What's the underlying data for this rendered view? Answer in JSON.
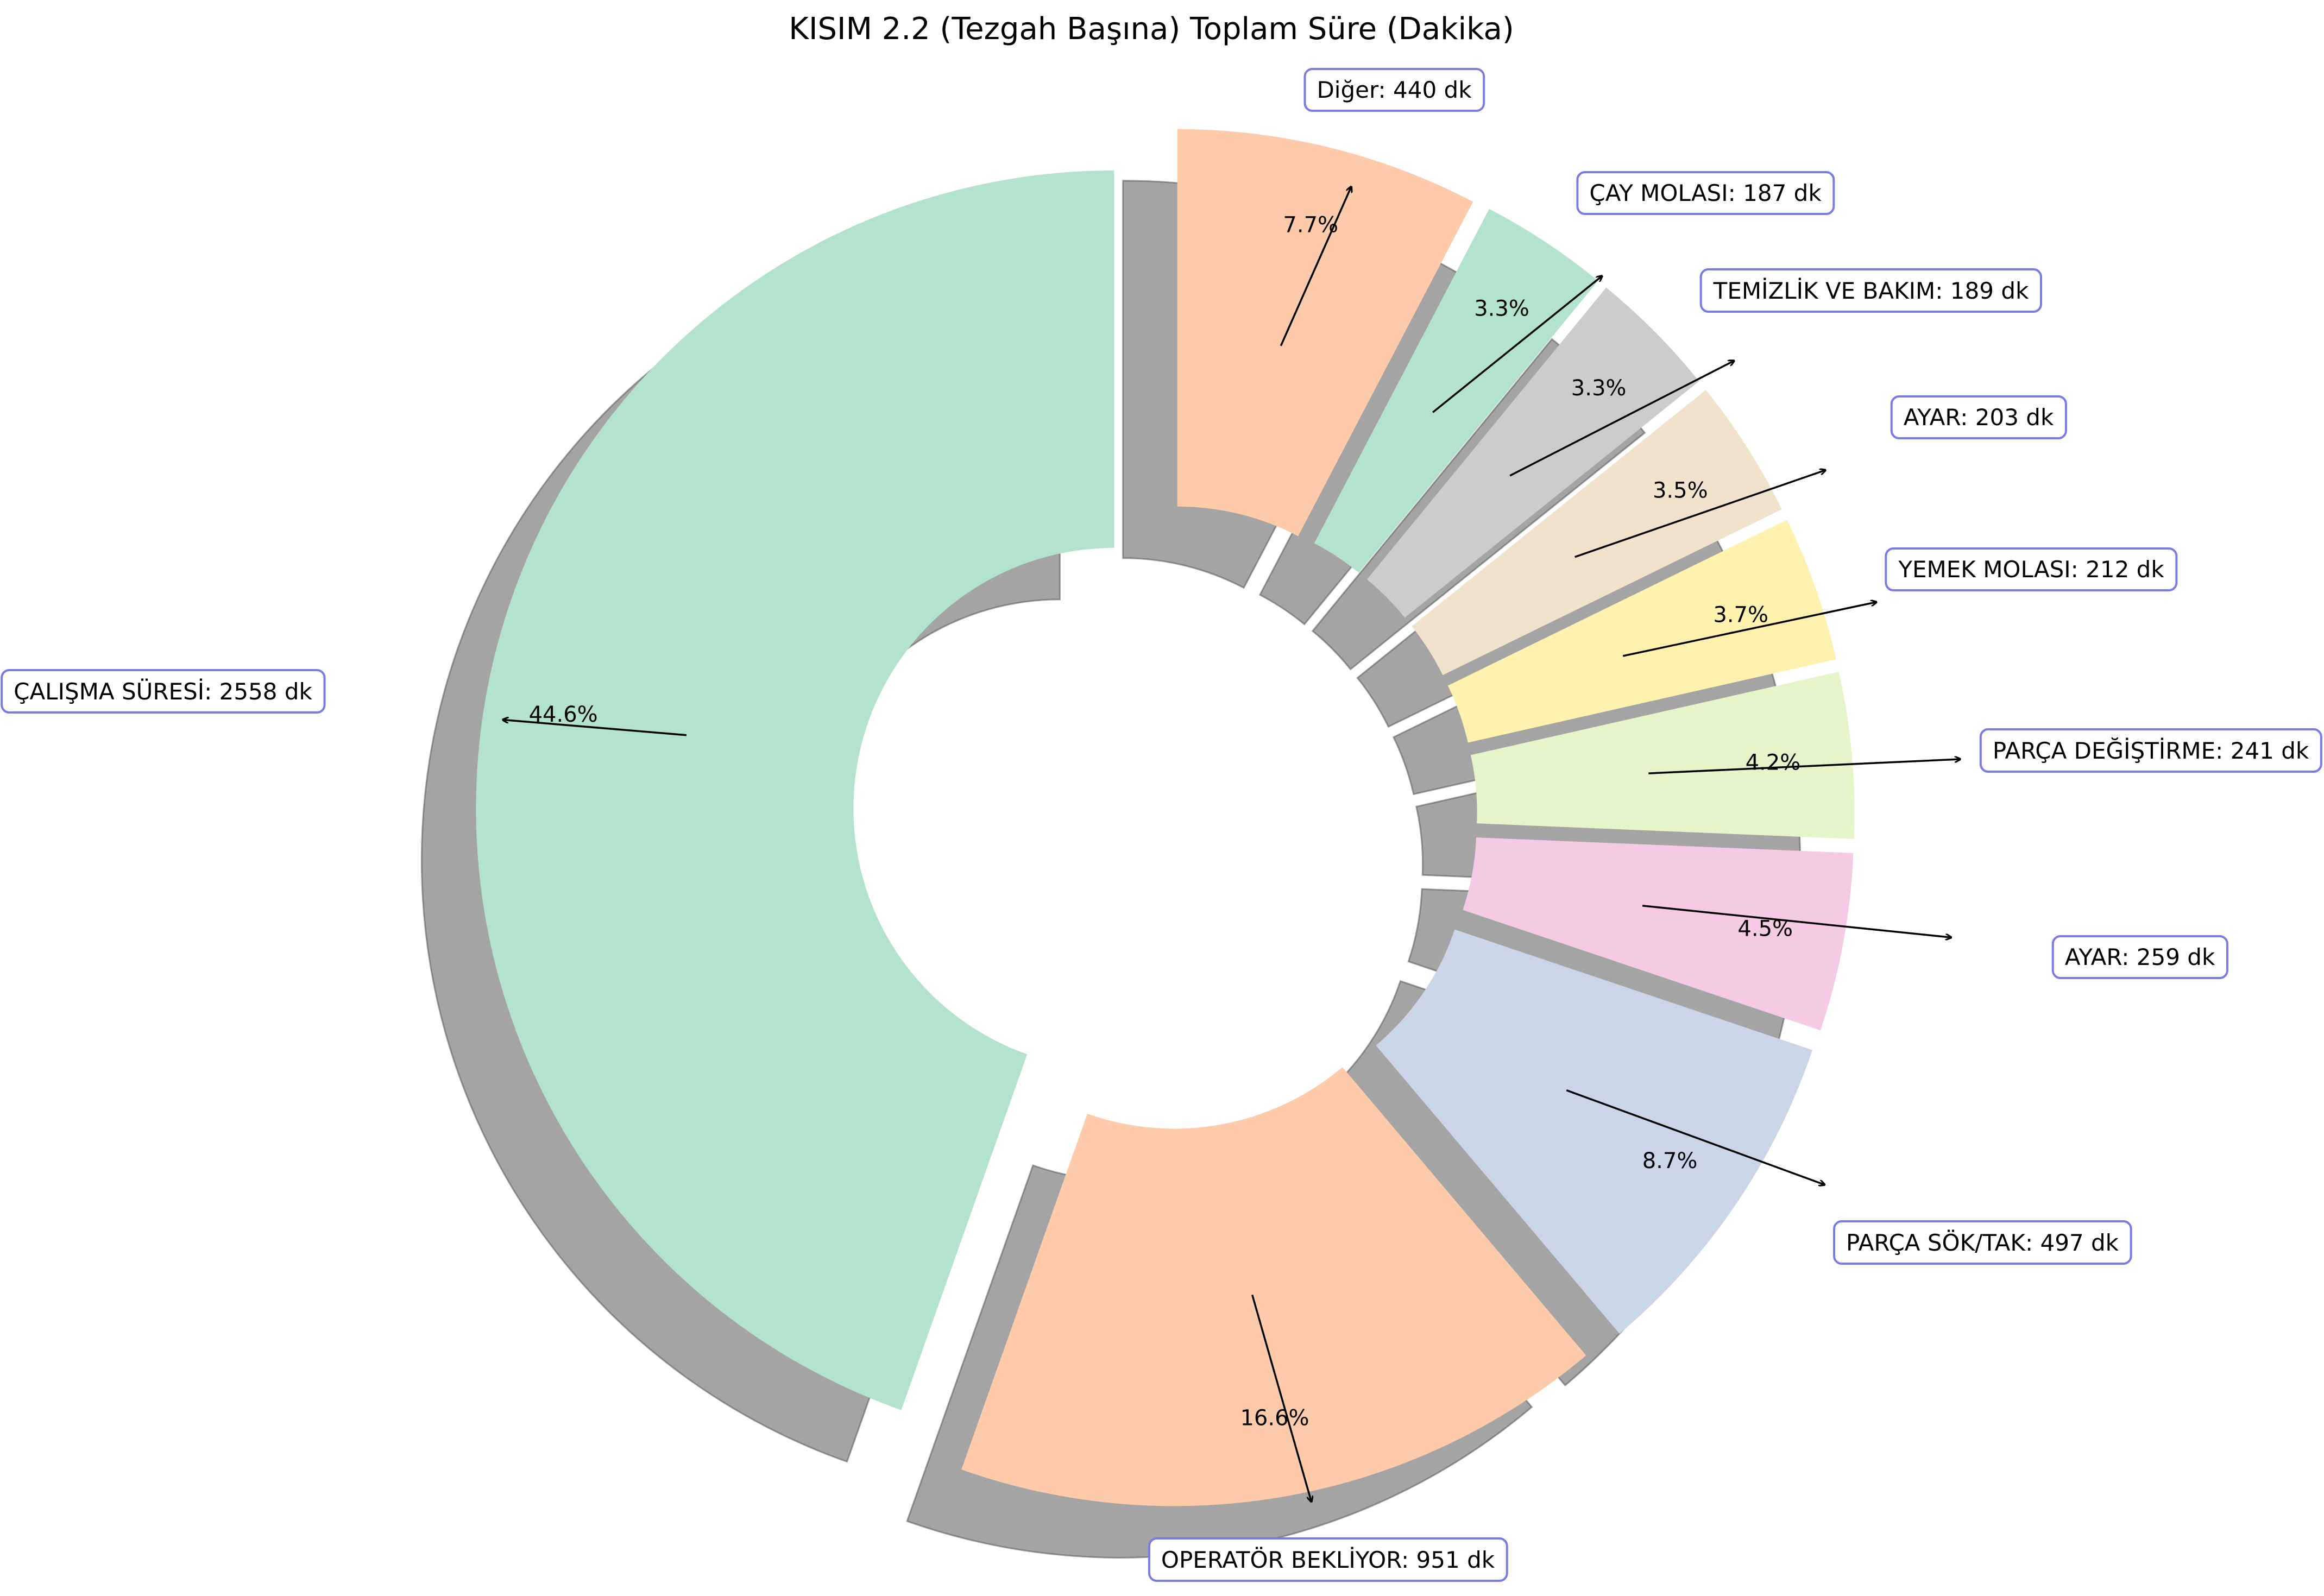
{
  "chart_data": {
    "type": "pie",
    "style": "donut",
    "title": "KISIM 2.2 (Tezgah Başına) Toplam Süre (Dakika)",
    "unit_suffix": "dk",
    "start_angle_deg": 90,
    "direction": "clockwise",
    "slices": [
      {
        "label": "Diğer",
        "value": 440,
        "pct_label": "7.7%",
        "color": "#fdcbaa"
      },
      {
        "label": "ÇAY MOLASI",
        "value": 187,
        "pct_label": "3.3%",
        "color": "#b3e2cd"
      },
      {
        "label": "TEMİZLİK VE BAKIM",
        "value": 189,
        "pct_label": "3.3%",
        "color": "#cccccc"
      },
      {
        "label": "AYAR",
        "value": 203,
        "pct_label": "3.5%",
        "color": "#f1e2cc"
      },
      {
        "label": "YEMEK MOLASI",
        "value": 212,
        "pct_label": "3.7%",
        "color": "#fff2ae"
      },
      {
        "label": "PARÇA DEĞİŞTİRME",
        "value": 241,
        "pct_label": "4.2%",
        "color": "#e6f5c9"
      },
      {
        "label": "AYAR",
        "value": 259,
        "pct_label": "4.5%",
        "color": "#f4cae4"
      },
      {
        "label": "PARÇA SÖK/TAK",
        "value": 497,
        "pct_label": "8.7%",
        "color": "#cbd5e8"
      },
      {
        "label": "OPERATÖR BEKLİYOR",
        "value": 951,
        "pct_label": "16.6%",
        "color": "#fdcbaa"
      },
      {
        "label": "ÇALIŞMA SÜRESİ",
        "value": 2558,
        "pct_label": "44.6%",
        "color": "#b3e2cd"
      }
    ]
  }
}
